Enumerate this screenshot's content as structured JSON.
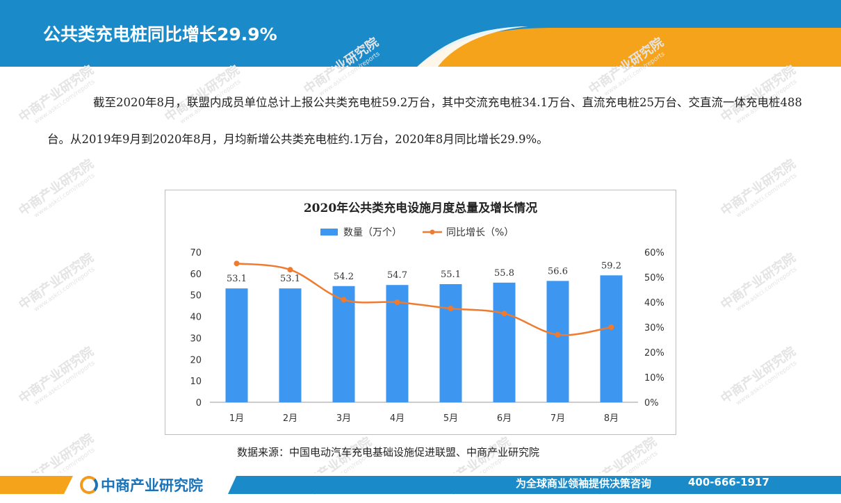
{
  "header": {
    "title": "公共类充电桩同比增长29.9%"
  },
  "paragraph": "截至2020年8月，联盟内成员单位总计上报公共类充电桩59.2万台，其中交流充电桩34.1万台、直流充电桩25万台、交直流一体充电桩488台。从2019年9月到2020年8月，月均新增公共类充电桩约.1万台，2020年8月同比增长29.9%。",
  "watermark": {
    "text": "中商产业研究院",
    "url": "www.askci.com/reports"
  },
  "chart_data": {
    "type": "bar",
    "title": "2020年公共类充电设施月度总量及增长情况",
    "categories": [
      "1月",
      "2月",
      "3月",
      "4月",
      "5月",
      "6月",
      "7月",
      "8月"
    ],
    "series": [
      {
        "name": "数量（万个）",
        "type": "bar",
        "axis": "left",
        "values": [
          53.1,
          53.1,
          54.2,
          54.7,
          55.1,
          55.8,
          56.6,
          59.2
        ],
        "labels": [
          "53.1",
          "53.1",
          "54.2",
          "54.7",
          "55.1",
          "55.8",
          "56.6",
          "59.2"
        ]
      },
      {
        "name": "同比增长（%）",
        "type": "line",
        "axis": "right",
        "values": [
          55.5,
          53.0,
          41.0,
          40.0,
          37.5,
          35.5,
          27.0,
          30.0
        ]
      }
    ],
    "y_left": {
      "min": 0,
      "max": 70,
      "ticks": [
        "0",
        "10",
        "20",
        "30",
        "40",
        "50",
        "60",
        "70"
      ]
    },
    "y_right": {
      "min": 0,
      "max": 60,
      "ticks": [
        "0%",
        "10%",
        "20%",
        "30%",
        "40%",
        "50%",
        "60%"
      ]
    },
    "legend_position": "top",
    "colors": {
      "bar": "#3d96f0",
      "line": "#ee7b30"
    }
  },
  "source": "数据来源：中国电动汽车充电基础设施促进联盟、中商产业研究院",
  "footer": {
    "logo_text": "中商产业研究院",
    "slogan": "为全球商业领袖提供决策咨询",
    "phone": "400-666-1917"
  },
  "colors": {
    "blue": "#1a8ac9",
    "orange": "#f5a31b"
  }
}
